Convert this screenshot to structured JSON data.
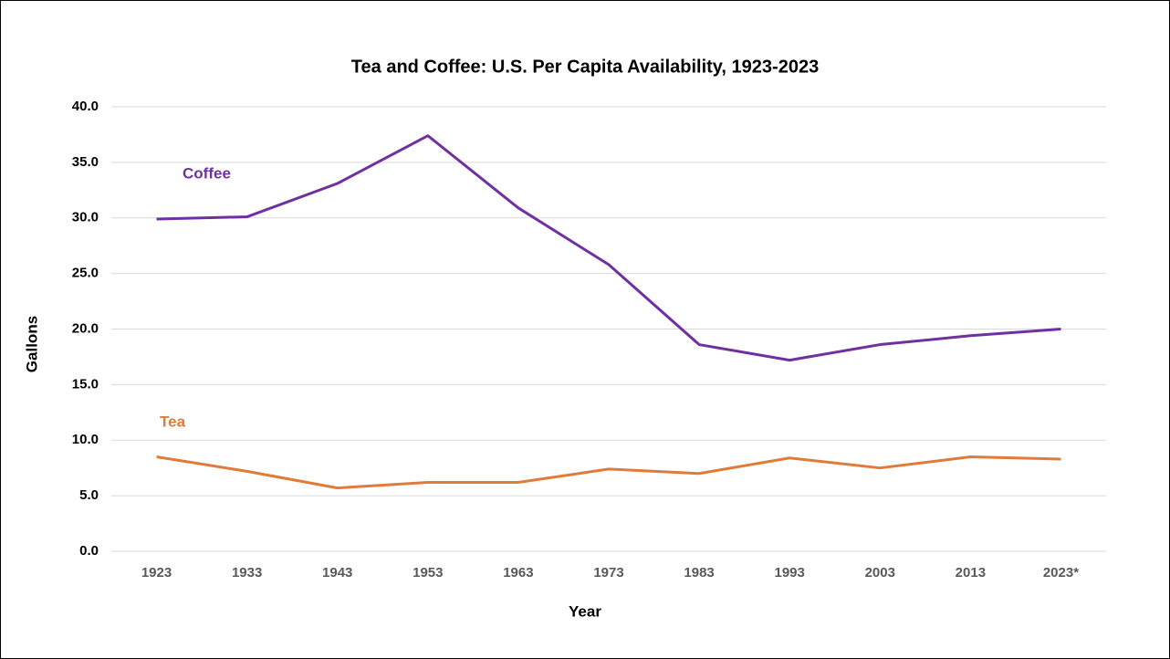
{
  "chart_data": {
    "type": "line",
    "title": "Tea and Coffee: U.S. Per Capita Availability, 1923-2023",
    "x_label": "Year",
    "y_label": "Gallons",
    "categories": [
      "1923",
      "1933",
      "1943",
      "1953",
      "1963",
      "1973",
      "1983",
      "1993",
      "2003",
      "2013",
      "2023*"
    ],
    "series": [
      {
        "name": "Coffee",
        "color": "#7030a0",
        "values": [
          29.9,
          30.1,
          33.1,
          37.4,
          30.9,
          25.8,
          18.6,
          17.2,
          18.6,
          19.4,
          20.0
        ]
      },
      {
        "name": "Tea",
        "color": "#e07b39",
        "values": [
          8.5,
          7.2,
          5.7,
          6.2,
          6.2,
          7.4,
          7.0,
          8.4,
          7.5,
          8.5,
          8.3
        ]
      }
    ],
    "ylim": [
      0,
      40
    ],
    "yticks": [
      {
        "value": 0,
        "label": "0.0"
      },
      {
        "value": 5,
        "label": "5.0"
      },
      {
        "value": 10,
        "label": "10.0"
      },
      {
        "value": 15,
        "label": "15.0"
      },
      {
        "value": 20,
        "label": "20.0"
      },
      {
        "value": 25,
        "label": "25.0"
      },
      {
        "value": 30,
        "label": "30.0"
      },
      {
        "value": 35,
        "label": "35.0"
      },
      {
        "value": 40,
        "label": "40.0"
      }
    ],
    "grid": true
  }
}
